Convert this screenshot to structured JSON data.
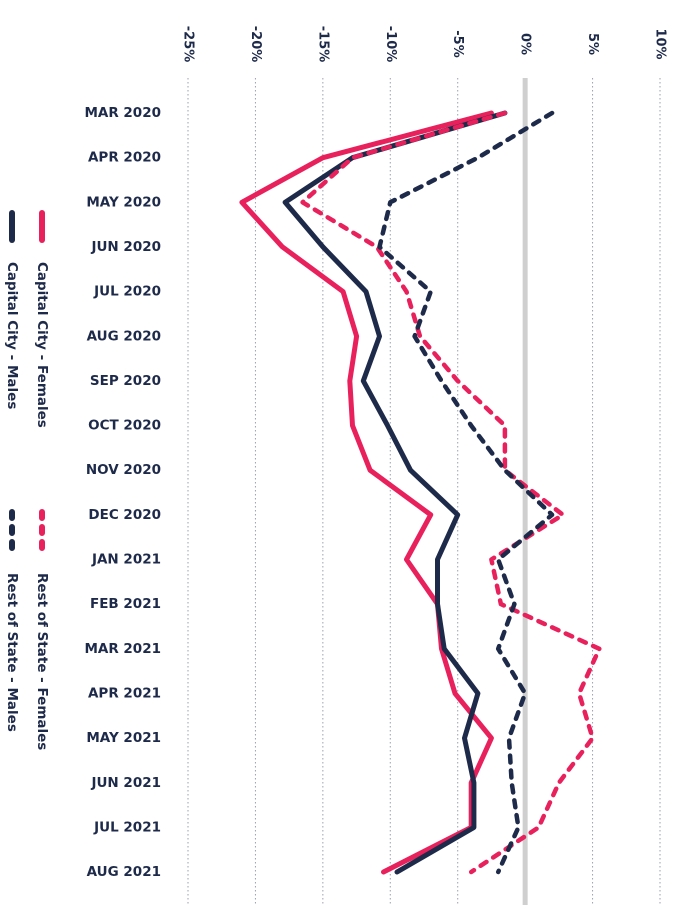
{
  "chart_data": {
    "type": "line",
    "orientation": "rotated-90",
    "x_axis": {
      "ticks": [
        "-25%",
        "-20%",
        "-15%",
        "-10%",
        "-5%",
        "0%",
        "5%",
        "10%"
      ],
      "tick_values": [
        -25,
        -20,
        -15,
        -10,
        -5,
        0,
        5,
        10
      ],
      "range": [
        -25,
        10
      ],
      "unit": "%"
    },
    "categories": [
      "MAR 2020",
      "APR 2020",
      "MAY 2020",
      "JUN 2020",
      "JUL 2020",
      "AUG 2020",
      "SEP 2020",
      "OCT 2020",
      "NOV 2020",
      "DEC 2020",
      "JAN 2021",
      "FEB 2021",
      "MAR 2021",
      "APR 2021",
      "MAY 2021",
      "JUN 2021",
      "JUL 2021",
      "AUG 2021"
    ],
    "grid": "dotted vertical",
    "zero_line": true,
    "legend_position": "left",
    "series": [
      {
        "name": "Capital City - Females",
        "color": "#e8215c",
        "style": "solid",
        "values": [
          -2.5,
          -15.0,
          -21.0,
          -18.0,
          -13.5,
          -12.5,
          -13.0,
          -12.8,
          -11.5,
          -7.0,
          -8.8,
          -6.5,
          -6.2,
          -5.2,
          -2.5,
          -4.0,
          -4.0,
          -10.5
        ]
      },
      {
        "name": "Capital City - Males",
        "color": "#1e2a4a",
        "style": "solid",
        "values": [
          -1.5,
          -12.8,
          -17.8,
          -15.0,
          -11.8,
          -10.8,
          -12.0,
          -10.2,
          -8.5,
          -5.0,
          -6.5,
          -6.5,
          -6.0,
          -3.5,
          -4.5,
          -3.8,
          -3.8,
          -9.5
        ]
      },
      {
        "name": "Rest of State - Females",
        "color": "#e8215c",
        "style": "dashed",
        "values": [
          -1.5,
          -12.8,
          -16.5,
          -11.0,
          -8.8,
          -7.8,
          -5.0,
          -1.5,
          -1.5,
          2.8,
          -2.5,
          -1.8,
          5.5,
          4.0,
          5.0,
          2.5,
          1.0,
          -4.0
        ]
      },
      {
        "name": "Rest of State - Males",
        "color": "#1e2a4a",
        "style": "dashed",
        "values": [
          2.0,
          -3.5,
          -10.0,
          -10.8,
          -7.0,
          -8.2,
          -6.2,
          -4.0,
          -1.5,
          2.0,
          -2.0,
          -0.8,
          -2.0,
          0.0,
          -1.2,
          -1.0,
          -0.5,
          -2.0
        ]
      }
    ]
  }
}
